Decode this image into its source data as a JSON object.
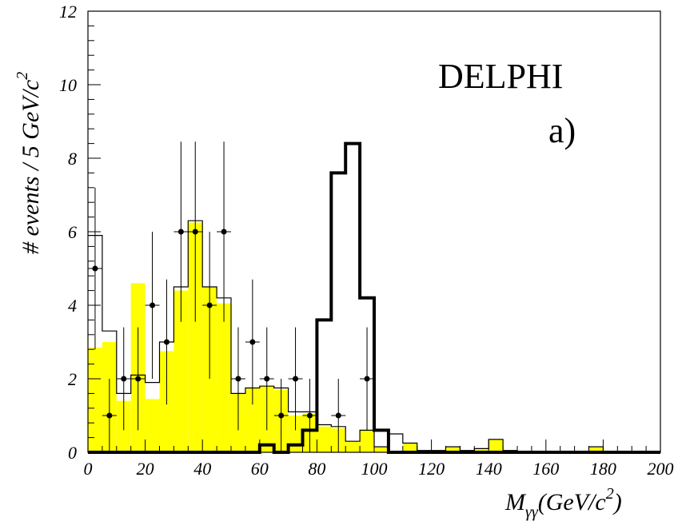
{
  "chart_data": {
    "type": "bar",
    "experiment_label": "DELPHI",
    "panel_label": "a)",
    "xlabel": {
      "main": "M",
      "sub": "γγ",
      "rest_prefix": "(GeV/c",
      "sup": "2",
      "rest_suffix": ")"
    },
    "ylabel": {
      "main": "# events / 5 GeV/c",
      "sup": "2"
    },
    "xlim": [
      0,
      200
    ],
    "ylim": [
      0,
      12
    ],
    "x_ticks": [
      "0",
      "20",
      "40",
      "60",
      "80",
      "100",
      "120",
      "140",
      "160",
      "180",
      "200"
    ],
    "x_tick_values": [
      0,
      20,
      40,
      60,
      80,
      100,
      120,
      140,
      160,
      180,
      200
    ],
    "y_ticks": [
      "0",
      "2",
      "4",
      "6",
      "8",
      "10",
      "12"
    ],
    "y_tick_values": [
      0,
      2,
      4,
      6,
      8,
      10,
      12
    ],
    "bin_width": 5,
    "bin_edges_start": 0,
    "series": [
      {
        "role": "total_background_outline",
        "color": "#000000",
        "values": [
          5.9,
          3.3,
          1.6,
          2.1,
          1.9,
          3.0,
          4.5,
          6.3,
          4.5,
          4.2,
          1.6,
          1.75,
          1.8,
          1.75,
          1.1,
          1.1,
          0.75,
          0.7,
          0.3,
          0.6,
          0.15,
          0.5,
          0.25,
          0.05,
          0.05,
          0.15,
          0.05,
          0.1,
          0.35,
          0.05,
          0.0,
          0.0,
          0.0,
          0.0,
          0.0,
          0.15,
          0.0,
          0.0,
          0.0,
          0.0
        ]
      },
      {
        "role": "filled_background",
        "color": "#ffff00",
        "values": [
          2.85,
          3.0,
          1.4,
          4.6,
          1.45,
          2.75,
          4.4,
          6.25,
          4.5,
          4.05,
          1.6,
          1.75,
          1.8,
          1.7,
          1.0,
          1.05,
          0.7,
          0.65,
          0.3,
          0.6,
          0.15,
          0.0,
          0.25,
          0.0,
          0.0,
          0.15,
          0.0,
          0.1,
          0.35,
          0.0,
          0.0,
          0.0,
          0.0,
          0.0,
          0.0,
          0.15,
          0.0,
          0.0,
          0.0,
          0.0
        ]
      },
      {
        "role": "signal_outline",
        "color": "#000000",
        "values": [
          0,
          0,
          0,
          0,
          0,
          0,
          0,
          0,
          0,
          0,
          0,
          0,
          0.2,
          0,
          0.2,
          0.6,
          3.6,
          7.6,
          8.4,
          4.2,
          0.6,
          0,
          0,
          0,
          0,
          0,
          0,
          0,
          0,
          0,
          0,
          0,
          0,
          0,
          0,
          0,
          0,
          0,
          0,
          0
        ]
      }
    ],
    "data_points": [
      {
        "x": 2.5,
        "y": 5,
        "err": 2.2
      },
      {
        "x": 7.5,
        "y": 1,
        "err": 1
      },
      {
        "x": 12.5,
        "y": 2,
        "err": 1.4
      },
      {
        "x": 17.5,
        "y": 2,
        "err": 1.4
      },
      {
        "x": 22.5,
        "y": 4,
        "err": 2
      },
      {
        "x": 27.5,
        "y": 3,
        "err": 1.7
      },
      {
        "x": 32.5,
        "y": 6,
        "err": 2.45
      },
      {
        "x": 37.5,
        "y": 6,
        "err": 2.45
      },
      {
        "x": 42.5,
        "y": 4,
        "err": 2
      },
      {
        "x": 47.5,
        "y": 6,
        "err": 2.45
      },
      {
        "x": 52.5,
        "y": 2,
        "err": 1.4
      },
      {
        "x": 57.5,
        "y": 3,
        "err": 1.7
      },
      {
        "x": 62.5,
        "y": 2,
        "err": 1.4
      },
      {
        "x": 67.5,
        "y": 1,
        "err": 1
      },
      {
        "x": 72.5,
        "y": 2,
        "err": 1.4
      },
      {
        "x": 77.5,
        "y": 1,
        "err": 1
      },
      {
        "x": 87.5,
        "y": 1,
        "err": 1
      },
      {
        "x": 97.5,
        "y": 2,
        "err": 1.4
      }
    ]
  }
}
